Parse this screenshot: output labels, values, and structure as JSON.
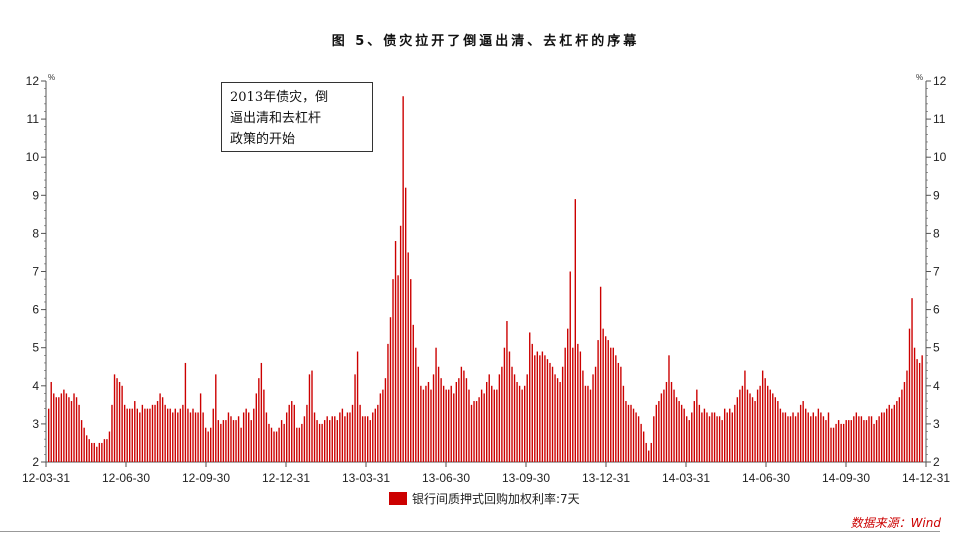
{
  "figure_title": "图 5、债灾拉开了倒逼出清、去杠杆的序幕",
  "annotation": [
    "2013年债灾，倒",
    "逼出清和去杠杆",
    "政策的开始"
  ],
  "source": "数据来源：Wind",
  "colors": {
    "series": "#cc0000",
    "axis": "#555555",
    "text": "#222222"
  },
  "chart_data": {
    "type": "bar",
    "title": "图 5、债灾拉开了倒逼出清、去杠杆的序幕",
    "xlabel": "",
    "ylabel_left": "%",
    "ylabel_right": "%",
    "ylim": [
      2,
      12
    ],
    "y_ticks": [
      2,
      3,
      4,
      5,
      6,
      7,
      8,
      9,
      10,
      11,
      12
    ],
    "x_tick_labels": [
      "12-03-31",
      "12-06-30",
      "12-09-30",
      "12-12-31",
      "13-03-31",
      "13-06-30",
      "13-09-30",
      "13-12-31",
      "14-03-31",
      "14-06-30",
      "14-09-30",
      "14-12-31"
    ],
    "legend": "top-bottom-center",
    "series": [
      {
        "name": "银行间质押式回购加权利率:7天",
        "x_start": "12-03-31",
        "x_end": "14-12-31",
        "values": [
          3.4,
          4.1,
          3.8,
          3.7,
          3.7,
          3.8,
          3.9,
          3.8,
          3.7,
          3.6,
          3.8,
          3.7,
          3.5,
          3.1,
          2.9,
          2.7,
          2.6,
          2.5,
          2.5,
          2.4,
          2.5,
          2.5,
          2.6,
          2.6,
          2.8,
          3.5,
          4.3,
          4.2,
          4.1,
          4.0,
          3.5,
          3.4,
          3.4,
          3.4,
          3.6,
          3.4,
          3.3,
          3.5,
          3.4,
          3.4,
          3.4,
          3.5,
          3.5,
          3.6,
          3.8,
          3.7,
          3.5,
          3.4,
          3.4,
          3.3,
          3.4,
          3.3,
          3.4,
          3.5,
          4.6,
          3.4,
          3.3,
          3.4,
          3.3,
          3.3,
          3.8,
          3.3,
          2.9,
          2.8,
          2.9,
          3.4,
          4.3,
          3.1,
          3.0,
          3.1,
          3.1,
          3.3,
          3.2,
          3.1,
          3.1,
          3.2,
          2.9,
          3.3,
          3.4,
          3.3,
          3.1,
          3.4,
          3.8,
          4.2,
          4.6,
          3.9,
          3.3,
          3.0,
          2.9,
          2.8,
          2.8,
          2.9,
          3.1,
          3.0,
          3.3,
          3.5,
          3.6,
          3.5,
          2.9,
          2.9,
          3.0,
          3.2,
          3.5,
          4.3,
          4.4,
          3.3,
          3.1,
          3.0,
          3.0,
          3.1,
          3.2,
          3.1,
          3.2,
          3.2,
          3.1,
          3.3,
          3.4,
          3.2,
          3.3,
          3.3,
          3.5,
          4.3,
          4.9,
          3.5,
          3.2,
          3.2,
          3.2,
          3.1,
          3.3,
          3.4,
          3.5,
          3.8,
          3.9,
          4.2,
          5.1,
          5.8,
          6.8,
          7.8,
          6.9,
          8.2,
          11.6,
          9.2,
          7.5,
          6.8,
          5.6,
          5.0,
          4.5,
          4.0,
          3.9,
          4.0,
          4.1,
          3.9,
          4.3,
          5.0,
          4.5,
          4.2,
          4.0,
          3.9,
          3.9,
          4.0,
          3.8,
          4.1,
          4.2,
          4.5,
          4.4,
          4.2,
          3.9,
          3.5,
          3.6,
          3.6,
          3.7,
          3.9,
          3.8,
          4.1,
          4.3,
          4.0,
          3.9,
          3.9,
          4.3,
          4.5,
          5.0,
          5.7,
          4.9,
          4.5,
          4.3,
          4.1,
          4.0,
          3.9,
          4.0,
          4.3,
          5.4,
          5.1,
          4.8,
          4.9,
          4.8,
          4.9,
          4.8,
          4.7,
          4.6,
          4.5,
          4.3,
          4.2,
          4.1,
          4.5,
          5.0,
          5.5,
          7.0,
          5.0,
          8.9,
          5.1,
          4.9,
          4.4,
          4.0,
          4.0,
          3.9,
          4.3,
          4.5,
          5.2,
          6.6,
          5.5,
          5.3,
          5.2,
          5.0,
          5.0,
          4.8,
          4.6,
          4.5,
          4.0,
          3.6,
          3.5,
          3.5,
          3.4,
          3.3,
          3.2,
          3.0,
          2.8,
          2.5,
          2.3,
          2.5,
          3.2,
          3.5,
          3.6,
          3.8,
          3.9,
          4.1,
          4.8,
          4.1,
          3.9,
          3.7,
          3.6,
          3.5,
          3.4,
          3.2,
          3.1,
          3.3,
          3.6,
          3.9,
          3.5,
          3.3,
          3.4,
          3.3,
          3.2,
          3.3,
          3.3,
          3.2,
          3.2,
          3.1,
          3.4,
          3.3,
          3.4,
          3.3,
          3.5,
          3.7,
          3.9,
          4.0,
          4.4,
          3.9,
          3.8,
          3.7,
          3.6,
          3.9,
          4.0,
          4.4,
          4.2,
          4.0,
          3.9,
          3.8,
          3.7,
          3.6,
          3.4,
          3.3,
          3.3,
          3.2,
          3.2,
          3.3,
          3.2,
          3.3,
          3.5,
          3.6,
          3.4,
          3.3,
          3.2,
          3.3,
          3.2,
          3.4,
          3.3,
          3.2,
          3.1,
          3.3,
          2.9,
          2.9,
          3.0,
          3.1,
          3.0,
          3.0,
          3.1,
          3.1,
          3.1,
          3.2,
          3.3,
          3.2,
          3.2,
          3.1,
          3.1,
          3.2,
          3.2,
          3.0,
          3.1,
          3.2,
          3.3,
          3.3,
          3.4,
          3.5,
          3.4,
          3.5,
          3.6,
          3.7,
          3.9,
          4.1,
          4.4,
          5.5,
          6.3,
          5.0,
          4.7,
          4.6,
          4.8
        ]
      }
    ]
  }
}
